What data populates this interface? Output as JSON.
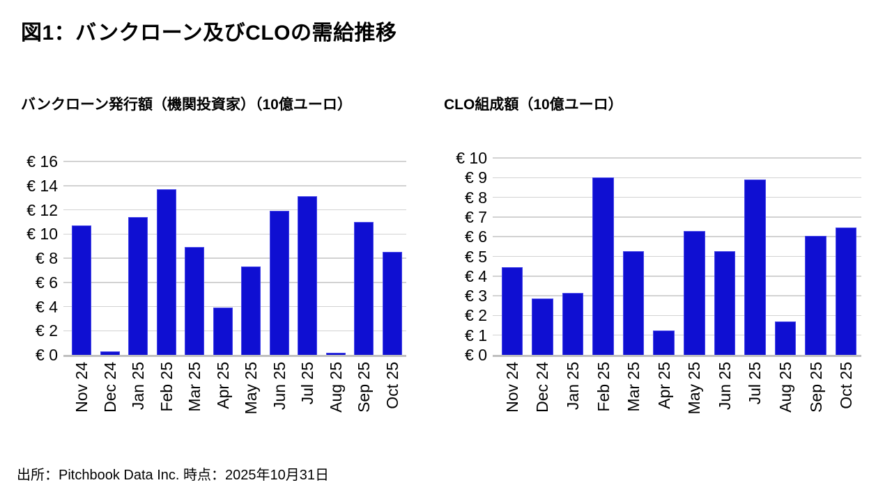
{
  "page": {
    "title": "図1：バンクローン及びCLOの需給推移",
    "source_note": "出所：Pitchbook Data Inc. 時点：2025年10月31日"
  },
  "colors": {
    "background": "#FFFFFF",
    "text": "#000000",
    "bar_fill": "#0F0FD2",
    "bar_border": "#4646E8",
    "gridline": "#D2D2D2",
    "axis_line": "#BFBFBF"
  },
  "chart_data": [
    {
      "type": "bar",
      "title": "バンクローン発行額（機関投資家）（10億ユーロ）",
      "categories": [
        "Nov 24",
        "Dec 24",
        "Jan 25",
        "Feb 25",
        "Mar 25",
        "Apr 25",
        "May 25",
        "Jun 25",
        "Jul 25",
        "Aug 25",
        "Sep 25",
        "Oct 25"
      ],
      "values": [
        10.7,
        0.3,
        11.4,
        13.7,
        8.9,
        3.9,
        7.3,
        11.9,
        13.1,
        0.15,
        11.0,
        8.5
      ],
      "xlabel": "",
      "ylabel": "",
      "ylim": [
        0,
        16
      ],
      "ytick_step": 2,
      "ytick_labels": [
        "€ 0",
        "€ 2",
        "€ 4",
        "€ 6",
        "€ 8",
        "€ 10",
        "€ 12",
        "€ 14",
        "€ 16"
      ],
      "grid": true,
      "legend": "none"
    },
    {
      "type": "bar",
      "title": "CLO組成額（10億ユーロ）",
      "categories": [
        "Nov 24",
        "Dec 24",
        "Jan 25",
        "Feb 25",
        "Mar 25",
        "Apr 25",
        "May 25",
        "Jun 25",
        "Jul 25",
        "Aug 25",
        "Sep 25",
        "Oct 25"
      ],
      "values": [
        4.45,
        2.85,
        3.15,
        9.0,
        5.25,
        1.25,
        6.3,
        5.25,
        8.9,
        1.7,
        6.05,
        6.45
      ],
      "xlabel": "",
      "ylabel": "",
      "ylim": [
        0,
        10
      ],
      "ytick_step": 1,
      "ytick_labels": [
        "€ 0",
        "€ 1",
        "€ 2",
        "€ 3",
        "€ 4",
        "€ 5",
        "€ 6",
        "€ 7",
        "€ 8",
        "€ 9",
        "€ 10"
      ],
      "grid": true,
      "legend": "none"
    }
  ]
}
